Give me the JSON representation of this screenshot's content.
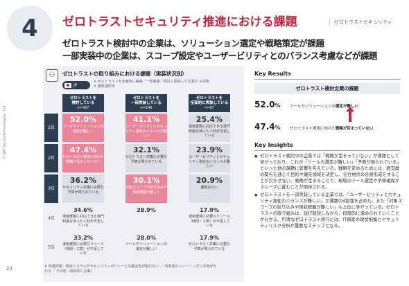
{
  "header": {
    "number": "4",
    "title": "ゼロトラストセキュリティ推進における課題",
    "section_tag": "ゼロトラストセキュリティ",
    "subtitle1": "ゼロトラスト検討中の企業は、ソリューション選定や戦略策定が課題",
    "subtitle2": "一部実装中の企業は、スコープ設定やユーザービリティとのバランス考慮などが課題"
  },
  "side_text": "© NRI SecureTechnologies, Ltd.",
  "page_number": "23",
  "left": {
    "title": "ゼロトラストの取り組みにおける課題（実装状況別）",
    "country": "JP",
    "notes": [
      "※ ゼロトラストを全面的に実装／一部実装／検討と回答した企業の み対象",
      "※ 複数選択可"
    ],
    "columns": [
      {
        "line1": "ゼロトラストを",
        "line2": "検討している",
        "n": "n=367"
      },
      {
        "line1": "ゼロトラストを",
        "line2": "一部実装している",
        "n": "n=246"
      },
      {
        "line1": "ゼロトラストを",
        "line2": "全面的に実装している",
        "n": "n=67"
      }
    ],
    "rows": [
      {
        "rank": "1位",
        "cells": [
          {
            "pct": "52.0%",
            "text": "ツールやソリューションの選定が難しい"
          },
          {
            "pct": "41.1%",
            "text": "ユーザービリティとセキュリティ強化のバランスが難しい"
          },
          {
            "pct": "25.4%",
            "text": "運用業務に対応できる専門知識を持った人材が不足している"
          }
        ]
      },
      {
        "rank": "2位",
        "cells": [
          {
            "pct": "47.4%",
            "text": "ゼロトラスト適用に向けた戦略が定まっていない"
          },
          {
            "pct": "32.1%",
            "text": "ゼロトラスト対策に必要な予算が限られている"
          },
          {
            "pct": "23.9%",
            "text": "ユーザービリティとセキュリティ強化のバランスが難しい"
          }
        ]
      },
      {
        "rank": "3位",
        "cells": [
          {
            "pct": "36.2%",
            "text": "セキュリティ対策に必要な予算が限られている"
          },
          {
            "pct": "30.1%",
            "text": "対象スコープの絞り込みや現状把握が難しい"
          },
          {
            "pct": "20.9%",
            "text": "課題はない"
          }
        ]
      },
      {
        "rank": "4位",
        "cells": [
          {
            "pct": "34.6%",
            "text": "運用業務に対応できる専門知識を持った人材が不足している"
          },
          {
            "pct": "28.9%",
            "text": ""
          },
          {
            "pct": "17.9%",
            "text": "運用業務に必要なリソース（時間・工数）が不足している"
          }
        ]
      },
      {
        "rank": "5位",
        "cells": [
          {
            "pct": "33.2%",
            "text": "運用業務に必要なリソース（時間・工数）が不足している"
          },
          {
            "pct": "28.0%",
            "text": "ツールやソリューションの選定が難しい"
          },
          {
            "pct": "17.9%",
            "text": "ゼロトラスト対策に必要な予算が限られている"
          }
        ]
      }
    ],
    "footnote1": "※ 他選択肢：既存システムやセキュリティポリシーとの整合性が取れない ／ 利用者のトレーニングに手間がか",
    "footnote2": "かる ／その他（具体的に記載）"
  },
  "key_results": {
    "title": "Key Results",
    "box": "ゼロトラスト検討企業の課題",
    "items": [
      {
        "pct": "52.0",
        "unit": "%",
        "text_pre": "ツールやソリューションの",
        "text_bold": "選定が難しい"
      },
      {
        "pct": "47.4",
        "unit": "%",
        "text_pre": "ゼロトラスト適用に向けた",
        "text_bold": "戦略が定まっていない"
      }
    ]
  },
  "key_insights": {
    "title": "Key Insights",
    "items": [
      "ゼロトラスト検討中の企業では「戦略が定まっていない」が課題として挙がっており、これが「ツールの選定が難しい」「予算が限られている」といった他の課題に影響を与えている。戦略を定めるためには、経営層の関与を通じて目的や優先領域を決定し、全社視点の合意形成をすることが欠かせない。戦略が定まることで、現場のツール選定や予算確保がスムーズに進むことが期待される。",
      "ゼロトラストを一部実装している企業では、「ユーザービリティとセキュリティ強化のバランスが難しい」が課題の4割強を占めた。また「対象スコープの絞り込みや現状把握が難しい」も上位に挙がっている。ゼロトラストの取り組みは、試行錯誤しながら、段階的に進められていくことが分かる。円滑なゼロトラスト移行には、IT資産の現状把握とセキュリティリスク分析が重要なステップとなる。"
    ]
  },
  "colors": {
    "accent": "#c0283e",
    "navy": "#2d3e50",
    "highlight": "#e9869a"
  }
}
